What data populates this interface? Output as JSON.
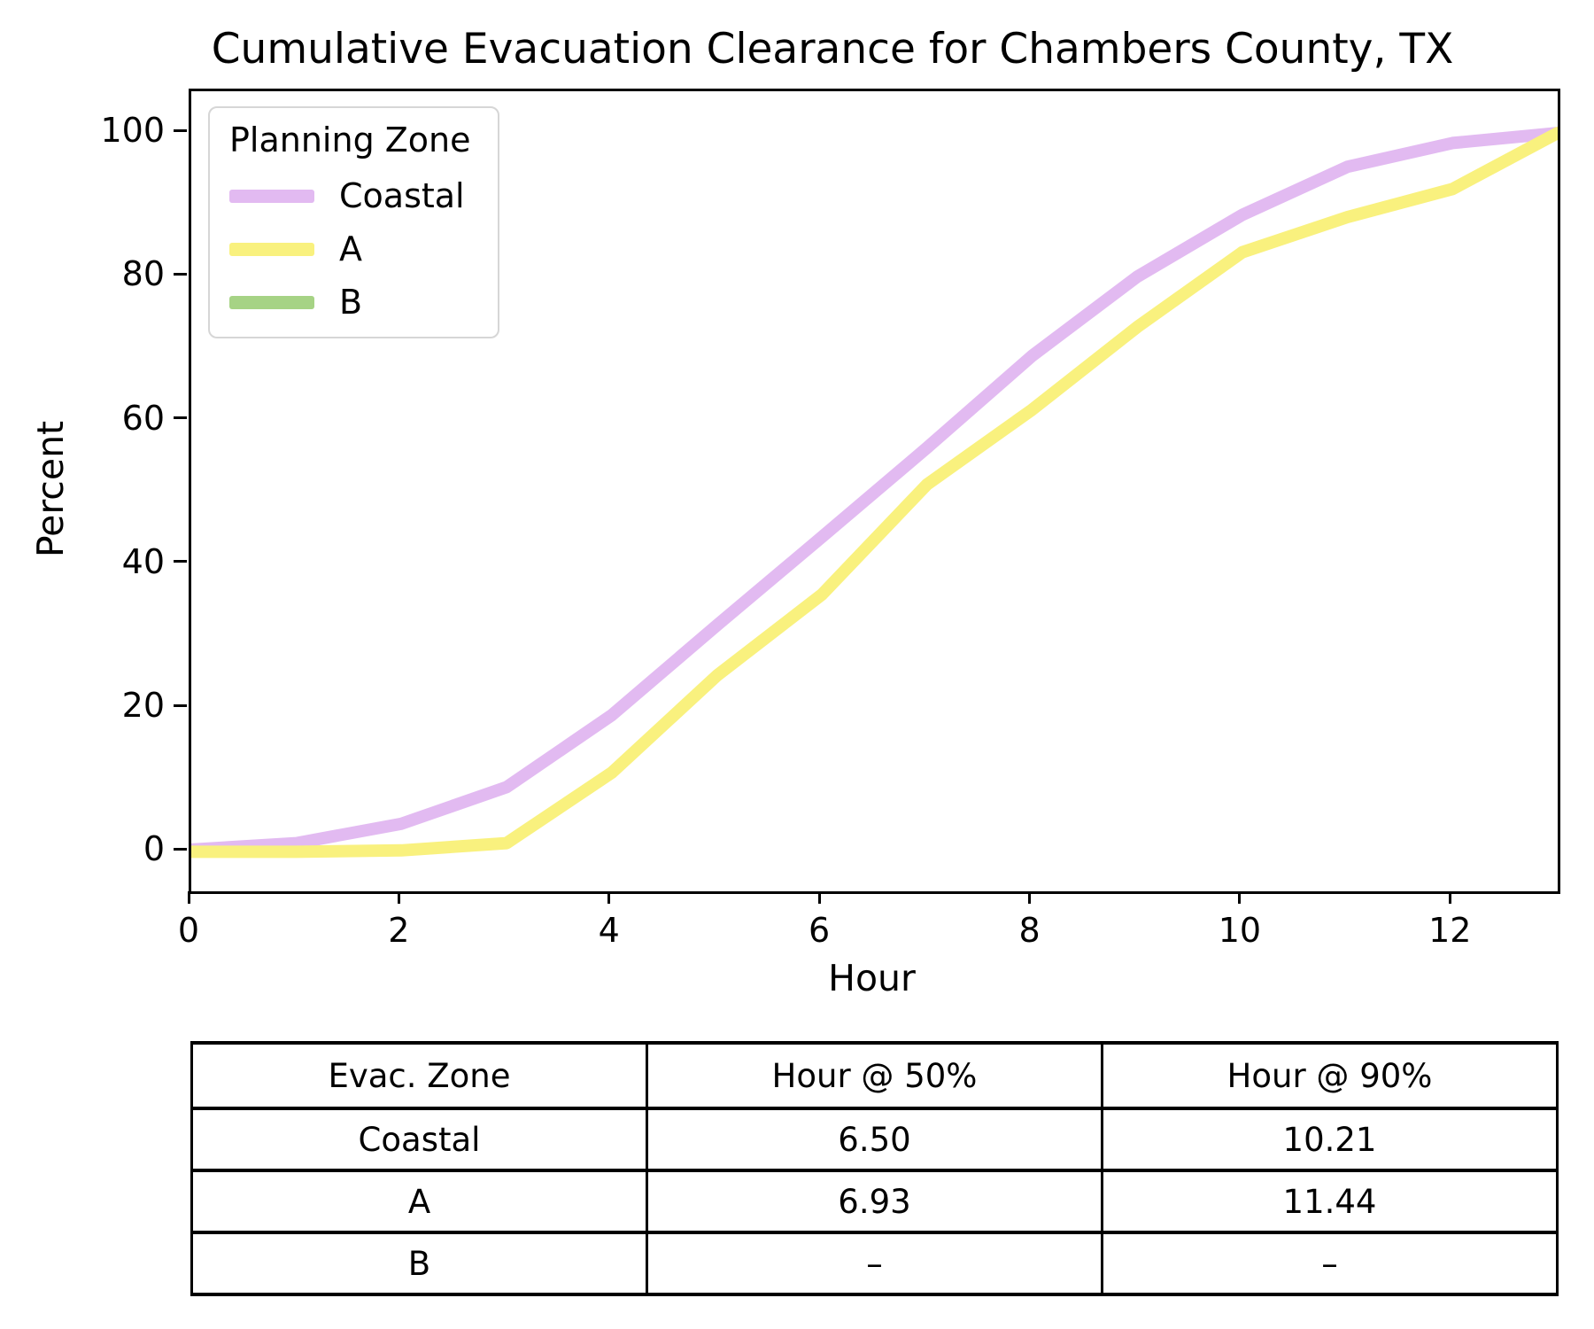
{
  "chart_data": {
    "type": "line",
    "title": "Cumulative Evacuation Clearance for Chambers County, TX",
    "xlabel": "Hour",
    "ylabel": "Percent",
    "xlim": [
      0,
      13
    ],
    "ylim": [
      -5.5,
      105.8
    ],
    "x_ticks": [
      0,
      2,
      4,
      6,
      8,
      10,
      12
    ],
    "y_ticks": [
      0,
      20,
      40,
      60,
      80,
      100
    ],
    "grid": false,
    "legend": {
      "title": "Planning Zone",
      "position": "upper-left"
    },
    "x": [
      0,
      1,
      2,
      3,
      4,
      5,
      6,
      7,
      8,
      9,
      10,
      11,
      12,
      13
    ],
    "series": [
      {
        "name": "Coastal",
        "color": "#e2baf1",
        "values": [
          0.3,
          1.2,
          3.9,
          9.0,
          19.0,
          31.5,
          43.8,
          56.2,
          69.0,
          80.0,
          88.6,
          95.3,
          98.6,
          100
        ]
      },
      {
        "name": "A",
        "color": "#f9f17e",
        "values": [
          0.0,
          0.0,
          0.2,
          1.2,
          11.0,
          24.5,
          35.8,
          51.1,
          61.5,
          73.0,
          83.4,
          88.3,
          92.2,
          100
        ]
      },
      {
        "name": "B",
        "color": "#a6d385",
        "values": []
      }
    ],
    "line_width": 14
  },
  "table": {
    "headers": [
      "Evac. Zone",
      "Hour @ 50%",
      "Hour @ 90%"
    ],
    "rows": [
      [
        "Coastal",
        "6.50",
        "10.21"
      ],
      [
        "A",
        "6.93",
        "11.44"
      ],
      [
        "B",
        "–",
        "–"
      ]
    ]
  }
}
